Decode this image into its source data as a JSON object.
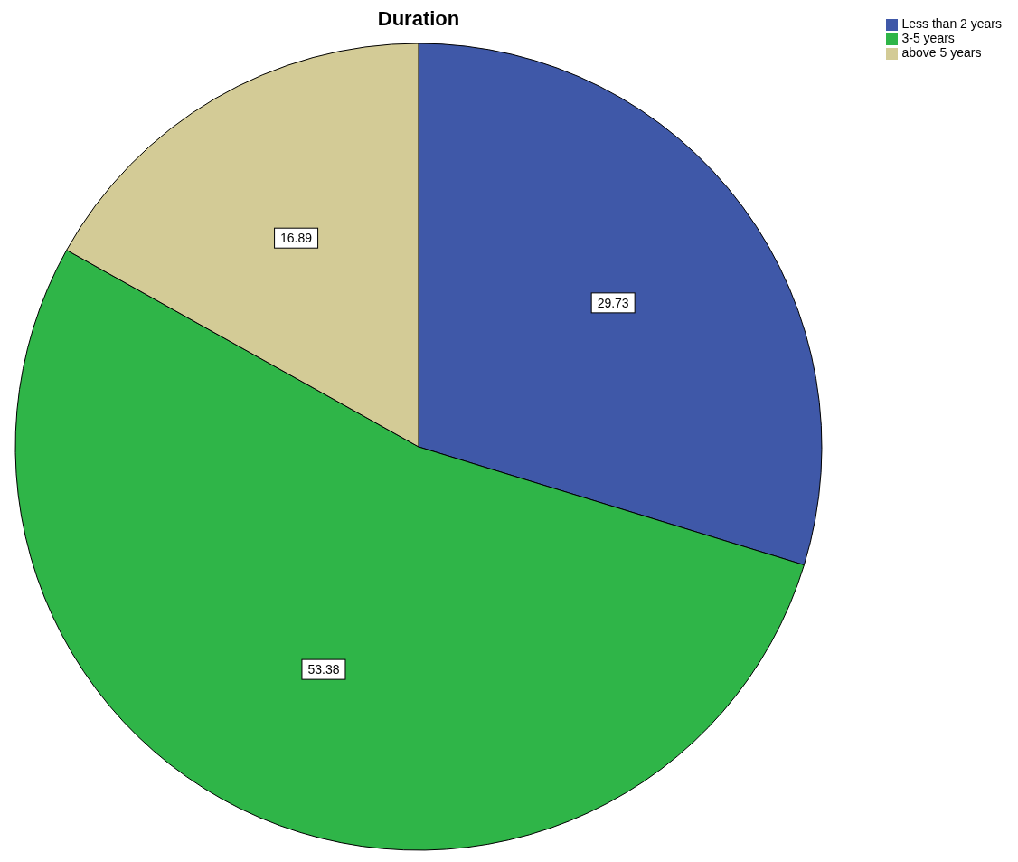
{
  "chart_data": {
    "type": "pie",
    "title": "Duration",
    "categories": [
      "Less than 2 years",
      "3-5 years",
      "above 5 years"
    ],
    "values": [
      29.73,
      53.38,
      16.89
    ],
    "colors": [
      "#3f58a8",
      "#2fb548",
      "#d3cb96"
    ],
    "data_labels": true,
    "legend": "top right"
  }
}
